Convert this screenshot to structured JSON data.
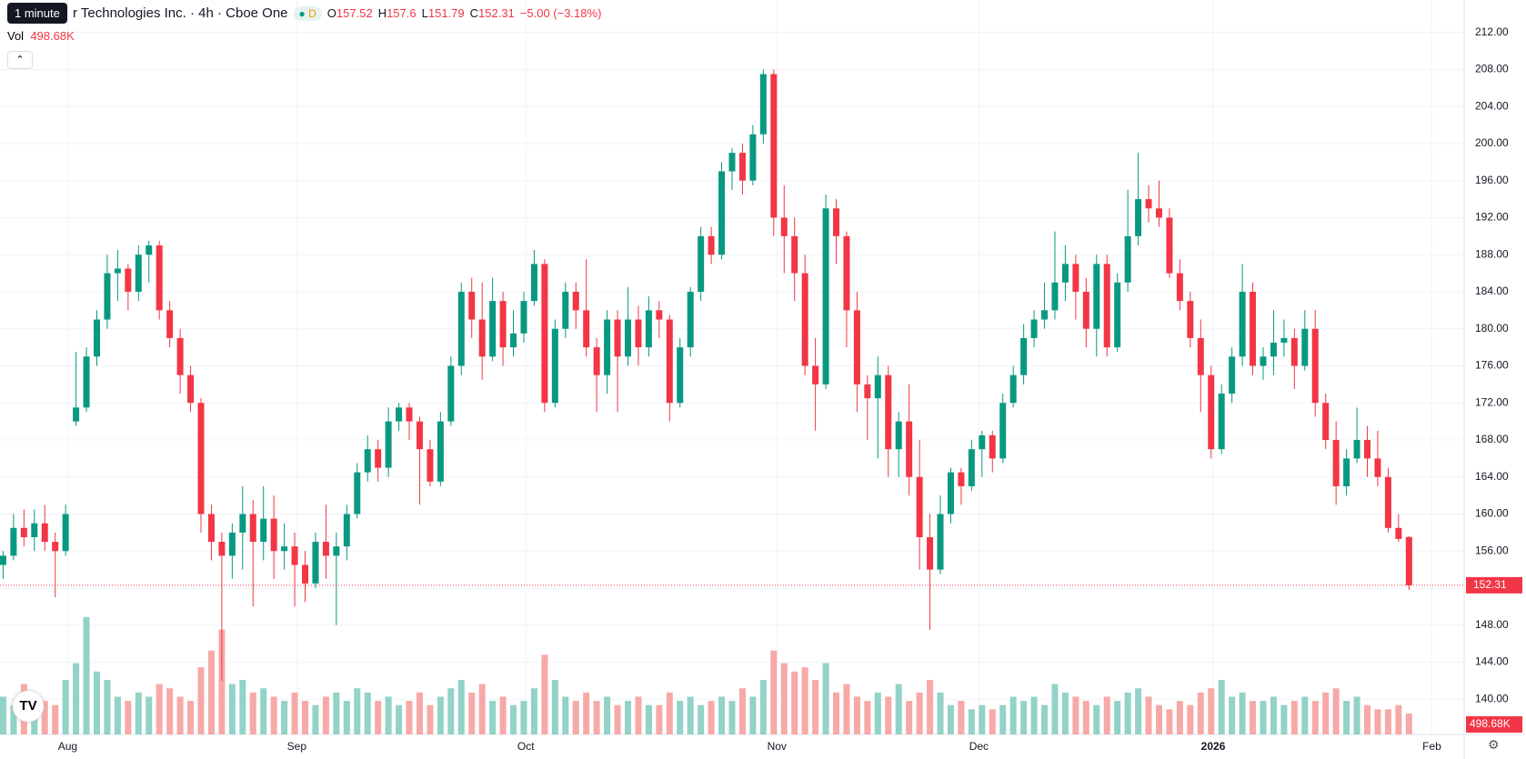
{
  "header": {
    "tooltip": "1 minute",
    "symbol": "r Technologies Inc. · 4h · Cboe One",
    "badge": "D",
    "o": "O",
    "h": "H",
    "l": "L",
    "c": "C",
    "change": "−5.00 (−3.18%)",
    "vol": "Vol"
  },
  "chart_data": {
    "type": "candlestick",
    "up_color": "#089981",
    "down_color": "#f23645",
    "volume_up_color": "#92d2c7",
    "volume_down_color": "#f7a9a7",
    "grid": true,
    "xlim": [
      -0.3,
      140.3
    ],
    "xticks": [
      {
        "value": 6.2,
        "label": "Aug"
      },
      {
        "value": 28.2,
        "label": "Sep"
      },
      {
        "value": 50.2,
        "label": "Oct"
      },
      {
        "value": 74.3,
        "label": "Nov"
      },
      {
        "value": 93.7,
        "label": "Dec"
      },
      {
        "value": 116.2,
        "label": "2026"
      },
      {
        "value": 137.2,
        "label": "Feb"
      }
    ],
    "ylim": [
      136.2,
      215.5
    ],
    "yticks": [
      {
        "value": 140,
        "label": "140.00"
      },
      {
        "value": 144,
        "label": "144.00"
      },
      {
        "value": 148,
        "label": "148.00"
      },
      {
        "value": 152,
        "label": "152.00"
      },
      {
        "value": 156,
        "label": "156.00"
      },
      {
        "value": 160,
        "label": "160.00"
      },
      {
        "value": 164,
        "label": "164.00"
      },
      {
        "value": 168,
        "label": "168.00"
      },
      {
        "value": 172,
        "label": "172.00"
      },
      {
        "value": 176,
        "label": "176.00"
      },
      {
        "value": 180,
        "label": "180.00"
      },
      {
        "value": 184,
        "label": "184.00"
      },
      {
        "value": 188,
        "label": "188.00"
      },
      {
        "value": 192,
        "label": "192.00"
      },
      {
        "value": 196,
        "label": "196.00"
      },
      {
        "value": 200,
        "label": "200.00"
      },
      {
        "value": 204,
        "label": "204.00"
      },
      {
        "value": 208,
        "label": "208.00"
      },
      {
        "value": 212,
        "label": "212.00"
      }
    ],
    "candles": [
      [
        154.5,
        156,
        153,
        155.5
      ],
      [
        155.5,
        160,
        155,
        158.5
      ],
      [
        158.5,
        160.5,
        156.5,
        157.5
      ],
      [
        157.5,
        160.5,
        156,
        159
      ],
      [
        159,
        161,
        156,
        157
      ],
      [
        157,
        158,
        151,
        156
      ],
      [
        156,
        161,
        155.5,
        160
      ],
      [
        170,
        177.5,
        169.5,
        171.5
      ],
      [
        171.5,
        178,
        171,
        177
      ],
      [
        177,
        182,
        176,
        181
      ],
      [
        181,
        188,
        180,
        186
      ],
      [
        186,
        188.5,
        183,
        186.5
      ],
      [
        186.5,
        187,
        182,
        184
      ],
      [
        184,
        189,
        183,
        188
      ],
      [
        188,
        189.5,
        185,
        189
      ],
      [
        189,
        189.5,
        181,
        182
      ],
      [
        182,
        183,
        178,
        179
      ],
      [
        179,
        180,
        173,
        175
      ],
      [
        175,
        176,
        171,
        172
      ],
      [
        172,
        172.5,
        158,
        160
      ],
      [
        160,
        161,
        155,
        157
      ],
      [
        157,
        158,
        142,
        155.5
      ],
      [
        155.5,
        159,
        153,
        158
      ],
      [
        158,
        163,
        154,
        160
      ],
      [
        160,
        161.5,
        150,
        157
      ],
      [
        157,
        163,
        155,
        159.5
      ],
      [
        159.5,
        162,
        153,
        156
      ],
      [
        156,
        159,
        154,
        156.5
      ],
      [
        156.5,
        158,
        150,
        154.5
      ],
      [
        154.5,
        156,
        150.5,
        152.5
      ],
      [
        152.5,
        158,
        152,
        157
      ],
      [
        157,
        161,
        153,
        155.5
      ],
      [
        155.5,
        158,
        148,
        156.5
      ],
      [
        156.5,
        161,
        155,
        160
      ],
      [
        160,
        165.5,
        159.5,
        164.5
      ],
      [
        164.5,
        168.5,
        163.5,
        167
      ],
      [
        167,
        168,
        163.5,
        165
      ],
      [
        165,
        171.5,
        164,
        170
      ],
      [
        170,
        172,
        169,
        171.5
      ],
      [
        171.5,
        172,
        168,
        170
      ],
      [
        170,
        170.5,
        161,
        167
      ],
      [
        167,
        168,
        163,
        163.5
      ],
      [
        163.5,
        171,
        163,
        170
      ],
      [
        170,
        177,
        169.5,
        176
      ],
      [
        176,
        185,
        175,
        184
      ],
      [
        184,
        185.5,
        179,
        181
      ],
      [
        181,
        185,
        174.5,
        177
      ],
      [
        177,
        185.5,
        176.5,
        183
      ],
      [
        183,
        184,
        176,
        178
      ],
      [
        178,
        182,
        177,
        179.5
      ],
      [
        179.5,
        184,
        178.5,
        183
      ],
      [
        183,
        188.5,
        182.5,
        187
      ],
      [
        187,
        187.5,
        171,
        172
      ],
      [
        172,
        181,
        171.5,
        180
      ],
      [
        180,
        185,
        179,
        184
      ],
      [
        184,
        185,
        180,
        182
      ],
      [
        182,
        187.5,
        177,
        178
      ],
      [
        178,
        179,
        171,
        175
      ],
      [
        175,
        182,
        173,
        181
      ],
      [
        181,
        182,
        171,
        177
      ],
      [
        177,
        184.5,
        176,
        181
      ],
      [
        181,
        182.5,
        176,
        178
      ],
      [
        178,
        183.5,
        177,
        182
      ],
      [
        182,
        183,
        179,
        181
      ],
      [
        181,
        181.5,
        170,
        172
      ],
      [
        172,
        179,
        171.5,
        178
      ],
      [
        178,
        184.5,
        177,
        184
      ],
      [
        184,
        191,
        183,
        190
      ],
      [
        190,
        191,
        187,
        188
      ],
      [
        188,
        198,
        187.5,
        197
      ],
      [
        197,
        199.5,
        195,
        199
      ],
      [
        199,
        200,
        194.5,
        196
      ],
      [
        196,
        202,
        195.5,
        201
      ],
      [
        201,
        208,
        200,
        207.5
      ],
      [
        207.5,
        208,
        190,
        192
      ],
      [
        192,
        195.5,
        186,
        190
      ],
      [
        190,
        192,
        183,
        186
      ],
      [
        186,
        188,
        175,
        176
      ],
      [
        176,
        179,
        169,
        174
      ],
      [
        174,
        194.5,
        173.5,
        193
      ],
      [
        193,
        194,
        187,
        190
      ],
      [
        190,
        190.5,
        178,
        182
      ],
      [
        182,
        184,
        171,
        174
      ],
      [
        174,
        175,
        168,
        172.5
      ],
      [
        172.5,
        177,
        166,
        175
      ],
      [
        175,
        176,
        164,
        167
      ],
      [
        167,
        171,
        164,
        170
      ],
      [
        170,
        174,
        162,
        164
      ],
      [
        164,
        168,
        154,
        157.5
      ],
      [
        157.5,
        160,
        147.5,
        154
      ],
      [
        154,
        162,
        153.5,
        160
      ],
      [
        160,
        165,
        159,
        164.5
      ],
      [
        164.5,
        165,
        161,
        163
      ],
      [
        163,
        168,
        162.5,
        167
      ],
      [
        167,
        169,
        164,
        168.5
      ],
      [
        168.5,
        169,
        164.5,
        166
      ],
      [
        166,
        173,
        165.5,
        172
      ],
      [
        172,
        176,
        171.5,
        175
      ],
      [
        175,
        180.5,
        174,
        179
      ],
      [
        179,
        182,
        178,
        181
      ],
      [
        181,
        185,
        180,
        182
      ],
      [
        182,
        190.5,
        181,
        185
      ],
      [
        185,
        189,
        183,
        187
      ],
      [
        187,
        188,
        181,
        184
      ],
      [
        184,
        185.5,
        178,
        180
      ],
      [
        180,
        188,
        177,
        187
      ],
      [
        187,
        188,
        177,
        178
      ],
      [
        178,
        186,
        177.5,
        185
      ],
      [
        185,
        195,
        184,
        190
      ],
      [
        190,
        199,
        189,
        194
      ],
      [
        194,
        195.5,
        191.5,
        193
      ],
      [
        193,
        196,
        191,
        192
      ],
      [
        192,
        193,
        185.5,
        186
      ],
      [
        186,
        187.5,
        182,
        183
      ],
      [
        183,
        184,
        178,
        179
      ],
      [
        179,
        181,
        171,
        175
      ],
      [
        175,
        176,
        166,
        167
      ],
      [
        167,
        174,
        166.5,
        173
      ],
      [
        173,
        178,
        172,
        177
      ],
      [
        177,
        187,
        176,
        184
      ],
      [
        184,
        185,
        175,
        176
      ],
      [
        176,
        178,
        174.5,
        177
      ],
      [
        177,
        182,
        175,
        178.5
      ],
      [
        178.5,
        181,
        177,
        179
      ],
      [
        179,
        180,
        173.5,
        176
      ],
      [
        176,
        182,
        175.5,
        180
      ],
      [
        180,
        182,
        170.5,
        172
      ],
      [
        172,
        173,
        167,
        168
      ],
      [
        168,
        170,
        161,
        163
      ],
      [
        163,
        167,
        162,
        166
      ],
      [
        166,
        171.5,
        165.5,
        168
      ],
      [
        168,
        169.5,
        164,
        166
      ],
      [
        166,
        169,
        163,
        164
      ],
      [
        164,
        165,
        158,
        158.5
      ],
      [
        158.5,
        160,
        157,
        157.31
      ],
      [
        157.52,
        157.6,
        151.79,
        152.31
      ]
    ],
    "vlim": [
      0,
      6500
    ],
    "volume": [
      900,
      700,
      1200,
      600,
      800,
      700,
      1300,
      1700,
      2800,
      1500,
      1300,
      900,
      800,
      1000,
      900,
      1200,
      1100,
      900,
      800,
      1600,
      2000,
      2500,
      1200,
      1300,
      1000,
      1100,
      900,
      800,
      1000,
      800,
      700,
      900,
      1000,
      800,
      1100,
      1000,
      800,
      900,
      700,
      800,
      1000,
      700,
      900,
      1100,
      1300,
      1000,
      1200,
      800,
      900,
      700,
      800,
      1100,
      1900,
      1300,
      900,
      800,
      1000,
      800,
      900,
      700,
      800,
      900,
      700,
      700,
      1000,
      800,
      900,
      700,
      800,
      900,
      800,
      1100,
      900,
      1300,
      2000,
      1700,
      1500,
      1600,
      1300,
      1700,
      1000,
      1200,
      900,
      800,
      1000,
      900,
      1200,
      800,
      1000,
      1300,
      1000,
      700,
      800,
      600,
      700,
      600,
      700,
      900,
      800,
      900,
      700,
      1200,
      1000,
      900,
      800,
      700,
      900,
      800,
      1000,
      1100,
      900,
      700,
      600,
      800,
      700,
      1000,
      1100,
      1300,
      900,
      1000,
      800,
      800,
      900,
      700,
      800,
      900,
      800,
      1000,
      1100,
      800,
      900,
      700,
      600,
      600,
      700,
      498.68
    ],
    "volume_last_label": "498.68K"
  }
}
